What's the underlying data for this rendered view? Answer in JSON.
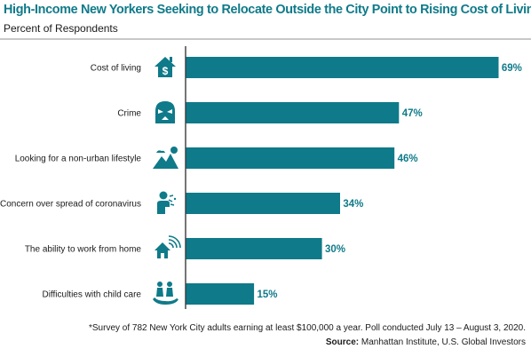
{
  "chart_data": {
    "type": "bar",
    "orientation": "horizontal",
    "title": "High-Income New Yorkers Seeking to Relocate Outside the City Point to Rising Cost of Living",
    "subtitle": "Percent of Respondents",
    "categories": [
      "Cost of living",
      "Crime",
      "Looking for a non-urban lifestyle",
      "Concern over spread of coronavirus",
      "The ability to work from home",
      "Difficulties with child care"
    ],
    "values": [
      69,
      47,
      46,
      34,
      30,
      15
    ],
    "value_labels": [
      "69%",
      "47%",
      "46%",
      "34%",
      "30%",
      "15%"
    ],
    "icons": [
      "house-dollar-icon",
      "masked-burglar-icon",
      "mountains-sun-icon",
      "person-coughing-icon",
      "house-wifi-icon",
      "family-hand-icon"
    ],
    "xlim": [
      0,
      70
    ],
    "grid": false,
    "bar_color": "#0f7a89"
  },
  "footnote": "*Survey of 782 New York City adults earning at least $100,000 a year. Poll conducted July 13 – August 3, 2020.",
  "source_label": "Source:",
  "source_text": "Manhattan Institute, U.S. Global Investors"
}
